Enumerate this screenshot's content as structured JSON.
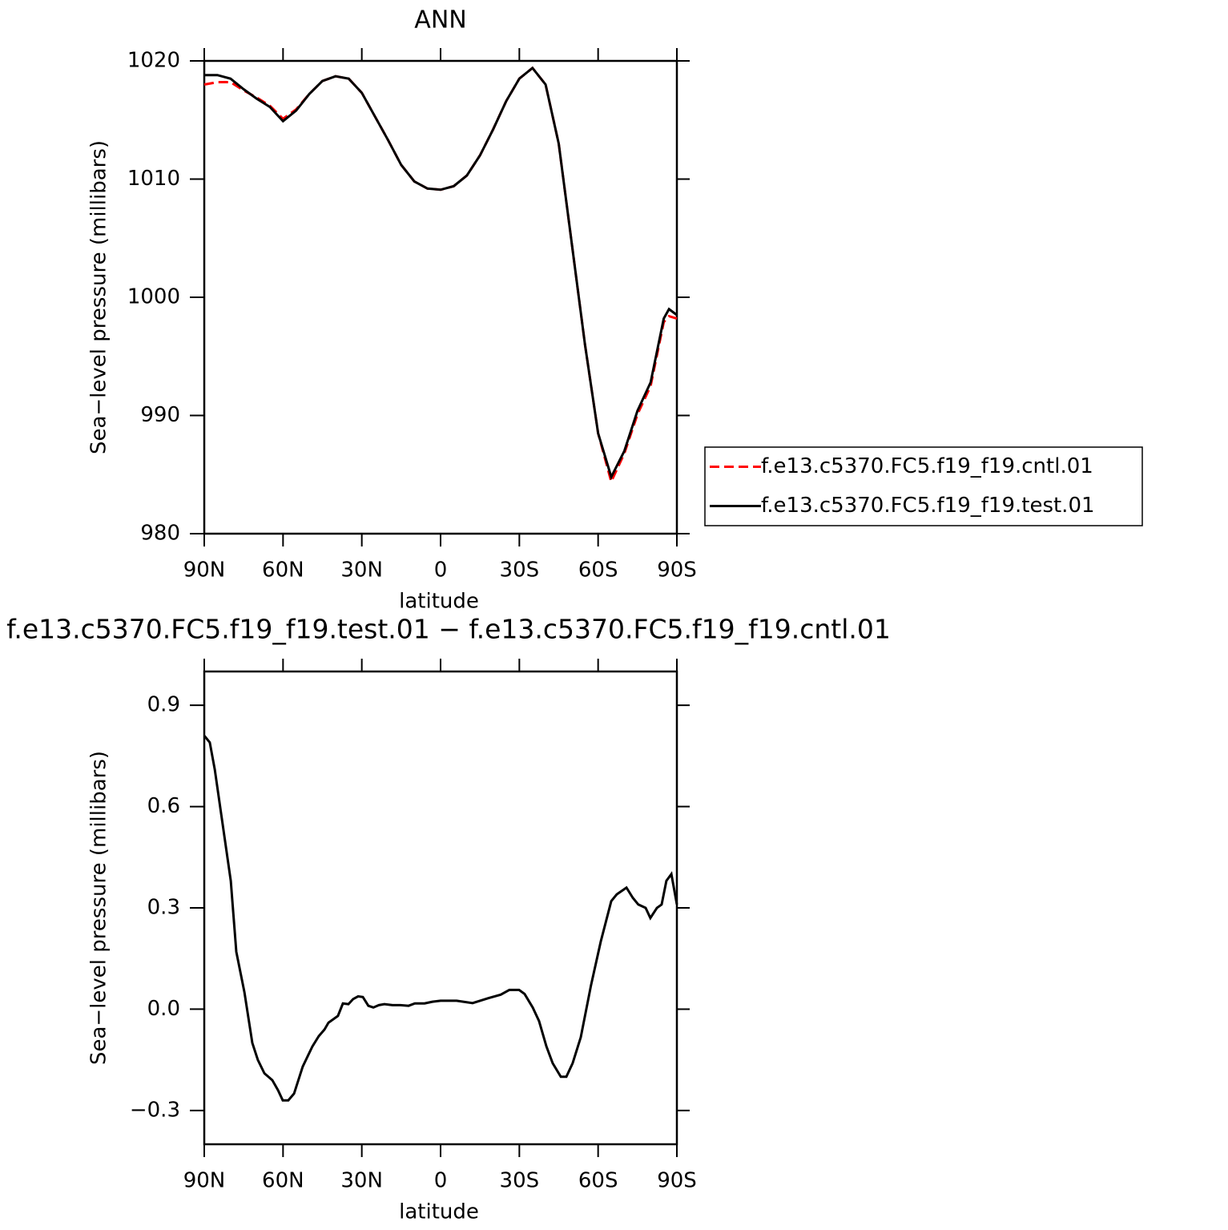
{
  "chart_data": [
    {
      "type": "line",
      "title": "ANN",
      "xlabel": "latitude",
      "ylabel": "Sea−level pressure (millibars)",
      "xlim": [
        90,
        -90
      ],
      "ylim": [
        980,
        1020
      ],
      "xticks": [
        {
          "value": 90,
          "label": "90N"
        },
        {
          "value": 60,
          "label": "60N"
        },
        {
          "value": 30,
          "label": "30N"
        },
        0,
        {
          "value": -30,
          "label": "30S"
        },
        {
          "value": -60,
          "label": "60S"
        },
        {
          "value": -90,
          "label": "90S"
        }
      ],
      "yticks": [
        980,
        990,
        1000,
        1010,
        1020
      ],
      "legend": "outside-right",
      "x": [
        90,
        85,
        80,
        75,
        70,
        65,
        60,
        55,
        50,
        45,
        40,
        35,
        30,
        25,
        20,
        15,
        10,
        5,
        0,
        -5,
        -10,
        -15,
        -20,
        -25,
        -30,
        -35,
        -40,
        -45,
        -50,
        -55,
        -60,
        -65,
        -70,
        -75,
        -80,
        -85,
        -87,
        -90
      ],
      "series": [
        {
          "name": "f.e13.c5370.FC5.f19_f19.cntl.01",
          "color": "#ff0000",
          "dash": "dashed",
          "values": [
            1018.0,
            1018.2,
            1018.2,
            1017.5,
            1016.9,
            1016.2,
            1015.1,
            1015.9,
            1017.2,
            1018.3,
            1018.7,
            1018.5,
            1017.3,
            1015.3,
            1013.3,
            1011.2,
            1009.8,
            1009.2,
            1009.1,
            1009.4,
            1010.3,
            1012.0,
            1014.2,
            1016.6,
            1018.5,
            1019.4,
            1018.0,
            1013.0,
            1004.5,
            996.0,
            988.5,
            984.4,
            986.8,
            990.1,
            992.5,
            997.9,
            998.4,
            998.2
          ]
        },
        {
          "name": "f.e13.c5370.FC5.f19_f19.test.01",
          "color": "#000000",
          "dash": "solid",
          "values": [
            1018.8,
            1018.8,
            1018.5,
            1017.6,
            1016.8,
            1016.1,
            1014.9,
            1015.8,
            1017.2,
            1018.3,
            1018.7,
            1018.5,
            1017.3,
            1015.3,
            1013.3,
            1011.2,
            1009.8,
            1009.2,
            1009.1,
            1009.4,
            1010.3,
            1012.0,
            1014.2,
            1016.6,
            1018.5,
            1019.4,
            1018.0,
            1013.0,
            1004.5,
            996.0,
            988.5,
            984.8,
            987.0,
            990.4,
            992.8,
            998.2,
            999.0,
            998.5
          ]
        }
      ]
    },
    {
      "type": "line",
      "title": "f.e13.c5370.FC5.f19_f19.test.01 − f.e13.c5370.FC5.f19_f19.cntl.01",
      "xlabel": "latitude",
      "ylabel": "Sea−level pressure (millibars)",
      "xlim": [
        90,
        -90
      ],
      "ylim": [
        -0.4,
        1.0
      ],
      "xticks": [
        {
          "value": 90,
          "label": "90N"
        },
        {
          "value": 60,
          "label": "60N"
        },
        {
          "value": 30,
          "label": "30N"
        },
        0,
        {
          "value": -30,
          "label": "30S"
        },
        {
          "value": -60,
          "label": "60S"
        },
        {
          "value": -90,
          "label": "90S"
        }
      ],
      "yticks": [
        {
          "value": -0.3,
          "label": "−0.3"
        },
        {
          "value": 0,
          "label": "0.0"
        },
        0.3,
        0.6,
        0.9
      ],
      "x": [
        90,
        87.9,
        86.0,
        79.9,
        77.8,
        74.7,
        71.7,
        69.6,
        67.1,
        64.1,
        61.9,
        60.1,
        58.0,
        55.8,
        52.5,
        48.8,
        46.4,
        44.2,
        42.7,
        39.1,
        37.2,
        35.1,
        33.3,
        31.4,
        29.6,
        27.5,
        25.6,
        23.5,
        21.4,
        18.3,
        15.3,
        12.2,
        9.8,
        6.1,
        3.1,
        0,
        -6.1,
        -12.2,
        -18.3,
        -22.9,
        -26.2,
        -29.9,
        -32.0,
        -35.1,
        -37.5,
        -40.3,
        -42.7,
        -45.8,
        -47.9,
        -50.3,
        -53.4,
        -57.3,
        -61.0,
        -65.0,
        -67.1,
        -70.8,
        -73.2,
        -75.3,
        -78.1,
        -79.9,
        -82.4,
        -84.2,
        -86.0,
        -87.9,
        -90
      ],
      "series": [
        {
          "color": "#000000",
          "dash": "solid",
          "values": [
            0.81,
            0.79,
            0.71,
            0.38,
            0.17,
            0.05,
            -0.1,
            -0.15,
            -0.19,
            -0.21,
            -0.24,
            -0.27,
            -0.27,
            -0.25,
            -0.17,
            -0.11,
            -0.08,
            -0.06,
            -0.04,
            -0.02,
            0.017,
            0.015,
            0.03,
            0.038,
            0.036,
            0.01,
            0.005,
            0.012,
            0.015,
            0.012,
            0.012,
            0.01,
            0.017,
            0.017,
            0.022,
            0.025,
            0.025,
            0.018,
            0.033,
            0.043,
            0.057,
            0.057,
            0.045,
            0.005,
            -0.035,
            -0.11,
            -0.16,
            -0.2,
            -0.2,
            -0.16,
            -0.083,
            0.071,
            0.2,
            0.32,
            0.34,
            0.36,
            0.33,
            0.31,
            0.3,
            0.27,
            0.3,
            0.31,
            0.38,
            0.4,
            0.31
          ]
        }
      ]
    }
  ]
}
